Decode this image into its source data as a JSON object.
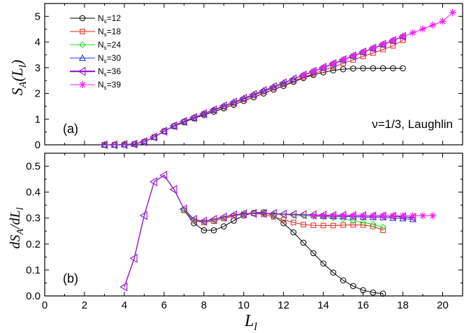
{
  "chart_data": [
    {
      "type": "line",
      "panel": "(a)",
      "ylabel": "S_A(L_l)",
      "xlabel": "L_l",
      "xlim": [
        0,
        21
      ],
      "ylim": [
        0,
        5.5
      ],
      "xticks": [
        0,
        2,
        4,
        6,
        8,
        10,
        12,
        14,
        16,
        18,
        20
      ],
      "yticks": [
        0,
        1,
        2,
        3,
        4,
        5
      ],
      "annotation": "ν=1/3, Laughlin",
      "legend_position": "top-left",
      "series": [
        {
          "name": "N_s=12",
          "sub": "s",
          "base": "N",
          "num": "=12",
          "color": "#000000",
          "marker": "circle",
          "x": [
            3,
            3.5,
            4,
            4.5,
            5,
            5.5,
            6,
            6.5,
            7,
            7.5,
            8,
            8.5,
            9,
            9.5,
            10,
            10.5,
            11,
            11.5,
            12,
            12.5,
            13,
            13.5,
            14,
            14.5,
            15,
            15.5,
            16,
            16.5,
            17,
            17.5,
            18
          ],
          "y": [
            0,
            0,
            0.01,
            0.03,
            0.12,
            0.3,
            0.53,
            0.72,
            0.88,
            1.03,
            1.16,
            1.29,
            1.42,
            1.56,
            1.71,
            1.85,
            2.0,
            2.15,
            2.29,
            2.45,
            2.6,
            2.72,
            2.82,
            2.9,
            2.94,
            2.97,
            2.98,
            2.98,
            2.98,
            2.98,
            2.98
          ]
        },
        {
          "name": "N_s=18",
          "sub": "s",
          "base": "N",
          "num": "=18",
          "color": "#e8231a",
          "marker": "square",
          "x": [
            3,
            3.5,
            4,
            4.5,
            5,
            5.5,
            6,
            6.5,
            7,
            7.5,
            8,
            8.5,
            9,
            9.5,
            10,
            10.5,
            11,
            11.5,
            12,
            12.5,
            13,
            13.5,
            14,
            14.5,
            15,
            15.5,
            16,
            16.5,
            17,
            17.5,
            18
          ],
          "y": [
            0,
            0,
            0.01,
            0.03,
            0.12,
            0.3,
            0.53,
            0.73,
            0.9,
            1.05,
            1.2,
            1.34,
            1.48,
            1.62,
            1.77,
            1.92,
            2.07,
            2.21,
            2.35,
            2.49,
            2.62,
            2.76,
            2.9,
            3.03,
            3.17,
            3.3,
            3.44,
            3.57,
            3.71,
            3.85,
            4.07
          ]
        },
        {
          "name": "N_s=24",
          "sub": "s",
          "base": "N",
          "num": "=24",
          "color": "#22dd22",
          "marker": "diamond",
          "x": [
            3,
            3.5,
            4,
            4.5,
            5,
            5.5,
            6,
            6.5,
            7,
            7.5,
            8,
            8.5,
            9,
            9.5,
            10,
            10.5,
            11,
            11.5,
            12,
            12.5,
            13,
            13.5,
            14,
            14.5,
            15,
            15.5,
            16,
            16.5,
            17,
            17.5,
            18
          ],
          "y": [
            0,
            0,
            0.01,
            0.03,
            0.12,
            0.3,
            0.53,
            0.74,
            0.91,
            1.06,
            1.21,
            1.36,
            1.5,
            1.65,
            1.8,
            1.95,
            2.1,
            2.25,
            2.4,
            2.55,
            2.7,
            2.85,
            2.99,
            3.14,
            3.29,
            3.44,
            3.59,
            3.74,
            3.89,
            4.04,
            4.22
          ]
        },
        {
          "name": "N_s=30",
          "sub": "s",
          "base": "N",
          "num": "=30",
          "color": "#1830d8",
          "marker": "triangle",
          "x": [
            3,
            3.5,
            4,
            4.5,
            5,
            5.5,
            6,
            6.5,
            7,
            7.5,
            8,
            8.5,
            9,
            9.5,
            10,
            10.5,
            11,
            11.5,
            12,
            12.5,
            13,
            13.5,
            14,
            14.5,
            15,
            15.5,
            16,
            16.5,
            17,
            17.5,
            18
          ],
          "y": [
            0,
            0,
            0.01,
            0.03,
            0.12,
            0.3,
            0.53,
            0.74,
            0.91,
            1.06,
            1.21,
            1.36,
            1.51,
            1.66,
            1.81,
            1.96,
            2.11,
            2.26,
            2.41,
            2.56,
            2.71,
            2.86,
            3.01,
            3.16,
            3.31,
            3.46,
            3.61,
            3.76,
            3.91,
            4.06,
            4.22
          ]
        },
        {
          "name": "N_s=36",
          "sub": "s",
          "base": "N",
          "num": "=36",
          "color": "#9a22c8",
          "marker": "left-triangle",
          "x": [
            3,
            3.5,
            4,
            4.5,
            5,
            5.5,
            6,
            6.5,
            7,
            7.5,
            8,
            8.5,
            9,
            9.5,
            10,
            10.5,
            11,
            11.5,
            12,
            12.5,
            13,
            13.5,
            14,
            14.5,
            15,
            15.5,
            16,
            16.5,
            17,
            17.5,
            18
          ],
          "y": [
            0,
            0,
            0.01,
            0.03,
            0.12,
            0.3,
            0.53,
            0.74,
            0.91,
            1.06,
            1.21,
            1.36,
            1.51,
            1.66,
            1.81,
            1.96,
            2.11,
            2.26,
            2.41,
            2.56,
            2.71,
            2.86,
            3.01,
            3.16,
            3.31,
            3.46,
            3.61,
            3.76,
            3.91,
            4.06,
            4.22
          ]
        },
        {
          "name": "N_s=39",
          "sub": "s",
          "base": "N",
          "num": "=39",
          "color": "#f020e8",
          "marker": "star",
          "x": [
            13,
            13.5,
            14,
            14.5,
            15,
            15.5,
            16,
            16.5,
            17,
            17.5,
            18,
            18.5,
            19,
            19.5,
            20,
            20.5
          ],
          "y": [
            2.71,
            2.86,
            3.01,
            3.16,
            3.31,
            3.46,
            3.61,
            3.76,
            3.91,
            4.06,
            4.21,
            4.36,
            4.51,
            4.66,
            4.81,
            5.15
          ]
        }
      ]
    },
    {
      "type": "line",
      "panel": "(b)",
      "ylabel": "dS_A/dL_l",
      "xlabel": "L_l",
      "xlim": [
        0,
        21
      ],
      "ylim": [
        0,
        0.55
      ],
      "xticks": [
        0,
        2,
        4,
        6,
        8,
        10,
        12,
        14,
        16,
        18,
        20
      ],
      "yticks": [
        0,
        0.1,
        0.2,
        0.3,
        0.4,
        0.5
      ],
      "series": [
        {
          "name": "N_s=12",
          "color": "#000000",
          "marker": "circle",
          "x": [
            7,
            7.5,
            8,
            8.5,
            9,
            9.5,
            10,
            10.5,
            11,
            11.5,
            12,
            12.5,
            13,
            13.5,
            14,
            14.5,
            15,
            15.5,
            16,
            16.5,
            17
          ],
          "y": [
            0.33,
            0.28,
            0.253,
            0.253,
            0.268,
            0.29,
            0.31,
            0.32,
            0.322,
            0.31,
            0.28,
            0.245,
            0.205,
            0.165,
            0.125,
            0.09,
            0.06,
            0.038,
            0.022,
            0.013,
            0.009
          ]
        },
        {
          "name": "N_s=18",
          "color": "#e8231a",
          "marker": "square",
          "x": [
            7,
            7.5,
            8,
            8.5,
            9,
            9.5,
            10,
            10.5,
            11,
            11.5,
            12,
            12.5,
            13,
            13.5,
            14,
            14.5,
            15,
            15.5,
            16,
            16.5,
            17
          ],
          "y": [
            0.33,
            0.29,
            0.283,
            0.288,
            0.298,
            0.308,
            0.315,
            0.318,
            0.314,
            0.305,
            0.293,
            0.283,
            0.275,
            0.272,
            0.271,
            0.271,
            0.273,
            0.274,
            0.273,
            0.268,
            0.253
          ]
        },
        {
          "name": "N_s=24",
          "color": "#22dd22",
          "marker": "diamond",
          "x": [
            7,
            7.5,
            8,
            8.5,
            9,
            9.5,
            10,
            10.5,
            11,
            11.5,
            12,
            12.5,
            13,
            13.5,
            14,
            14.5,
            15,
            15.5,
            16,
            16.5,
            17
          ],
          "y": [
            0.33,
            0.292,
            0.286,
            0.292,
            0.302,
            0.311,
            0.316,
            0.318,
            0.317,
            0.315,
            0.313,
            0.311,
            0.309,
            0.307,
            0.305,
            0.302,
            0.298,
            0.29,
            0.283,
            0.276,
            0.265
          ]
        },
        {
          "name": "N_s=30",
          "color": "#1830d8",
          "marker": "triangle",
          "x": [
            14,
            14.5,
            15,
            15.5,
            16,
            16.5,
            17,
            17.5,
            18,
            18.5
          ],
          "y": [
            0.308,
            0.307,
            0.306,
            0.305,
            0.304,
            0.303,
            0.302,
            0.3,
            0.298,
            0.295
          ]
        },
        {
          "name": "N_s=36",
          "color": "#9a22c8",
          "marker": "left-triangle",
          "x": [
            4,
            4.5,
            5,
            5.5,
            6,
            6.5,
            7,
            7.5,
            8,
            8.5,
            9,
            9.5,
            10,
            10.5,
            11,
            11.5,
            12,
            12.5,
            13,
            13.5,
            14,
            14.5,
            15,
            15.5,
            16,
            16.5,
            17,
            17.5,
            18,
            18.5
          ],
          "y": [
            0.035,
            0.145,
            0.31,
            0.44,
            0.465,
            0.41,
            0.335,
            0.295,
            0.288,
            0.295,
            0.304,
            0.312,
            0.316,
            0.318,
            0.318,
            0.317,
            0.315,
            0.314,
            0.313,
            0.312,
            0.311,
            0.31,
            0.31,
            0.309,
            0.309,
            0.308,
            0.308,
            0.307,
            0.305,
            0.302
          ]
        },
        {
          "name": "N_s=39",
          "color": "#f020e8",
          "marker": "star",
          "x": [
            13.5,
            14,
            14.5,
            15,
            15.5,
            16,
            16.5,
            17,
            17.5,
            18,
            18.5,
            19,
            19.5
          ],
          "y": [
            0.309,
            0.309,
            0.309,
            0.309,
            0.309,
            0.309,
            0.309,
            0.309,
            0.309,
            0.309,
            0.309,
            0.309,
            0.309
          ]
        }
      ]
    }
  ]
}
